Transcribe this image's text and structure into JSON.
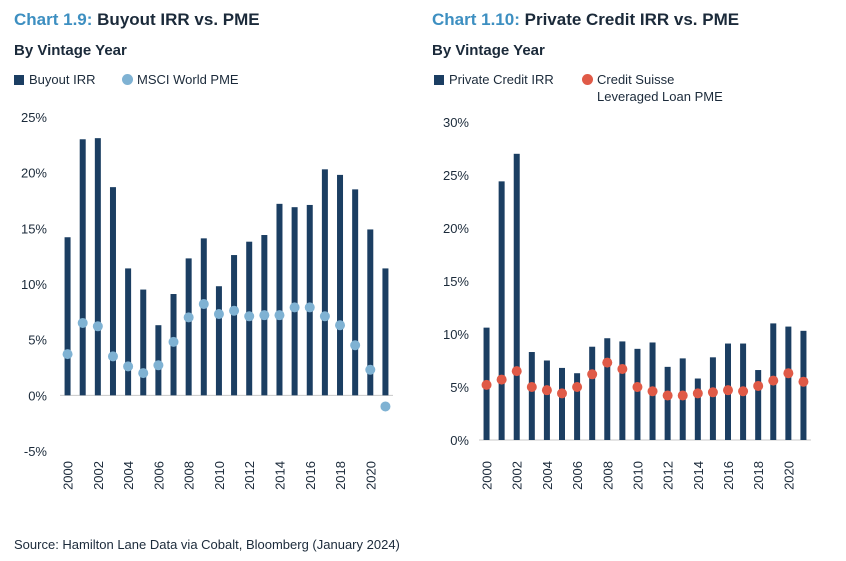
{
  "left": {
    "title_num": "Chart 1.9:",
    "title_text": "Buyout IRR vs. PME",
    "subtitle": "By Vintage Year",
    "legend_bar": "Buyout IRR",
    "legend_dot": "MSCI World PME"
  },
  "right": {
    "title_num": "Chart 1.10:",
    "title_text": "Private Credit IRR vs. PME",
    "subtitle": "By Vintage Year",
    "legend_bar": "Private Credit IRR",
    "legend_dot_line1": "Credit Suisse",
    "legend_dot_line2": "Leveraged Loan PME"
  },
  "source": "Source: Hamilton Lane Data via Cobalt, Bloomberg (January 2024)",
  "colors": {
    "bar": "#1b3e62",
    "pme_left": "#7fb2d3",
    "pme_right": "#e05a47",
    "title_accent": "#3d8fc1",
    "axis": "#c8c8c8"
  },
  "chart_data": [
    {
      "type": "bar",
      "title": "Buyout IRR vs. PME",
      "subtitle": "By Vintage Year",
      "x": [
        2000,
        2001,
        2002,
        2003,
        2004,
        2005,
        2006,
        2007,
        2008,
        2009,
        2010,
        2011,
        2012,
        2013,
        2014,
        2015,
        2016,
        2017,
        2018,
        2019,
        2020,
        2021
      ],
      "x_tick_labels": [
        "2000",
        "2002",
        "2004",
        "2006",
        "2008",
        "2010",
        "2012",
        "2014",
        "2016",
        "2018",
        "2020"
      ],
      "y_tick_labels": [
        "25%",
        "20%",
        "15%",
        "10%",
        "5%",
        "0%",
        "-5%"
      ],
      "y_ticks": [
        25,
        20,
        15,
        10,
        5,
        0,
        -5
      ],
      "ylim": [
        -5,
        25
      ],
      "series": [
        {
          "name": "Buyout IRR",
          "type": "bar",
          "values": [
            14.2,
            23.0,
            23.1,
            18.7,
            11.4,
            9.5,
            6.3,
            9.1,
            12.3,
            14.1,
            9.8,
            12.6,
            13.8,
            14.4,
            17.2,
            16.9,
            17.1,
            20.3,
            19.8,
            18.5,
            14.9,
            11.4
          ]
        },
        {
          "name": "MSCI World PME",
          "type": "scatter",
          "values": [
            3.7,
            6.5,
            6.2,
            3.5,
            2.6,
            2.0,
            2.7,
            4.8,
            7.0,
            8.2,
            7.3,
            7.6,
            7.1,
            7.2,
            7.2,
            7.9,
            7.9,
            7.1,
            6.3,
            4.5,
            2.3,
            -1.0
          ]
        }
      ],
      "legend": "top-left",
      "grid": false
    },
    {
      "type": "bar",
      "title": "Private Credit IRR vs. PME",
      "subtitle": "By Vintage Year",
      "x": [
        2000,
        2001,
        2002,
        2003,
        2004,
        2005,
        2006,
        2007,
        2008,
        2009,
        2010,
        2011,
        2012,
        2013,
        2014,
        2015,
        2016,
        2017,
        2018,
        2019,
        2020,
        2021
      ],
      "x_tick_labels": [
        "2000",
        "2002",
        "2004",
        "2006",
        "2008",
        "2010",
        "2012",
        "2014",
        "2016",
        "2018",
        "2020"
      ],
      "y_tick_labels": [
        "30%",
        "25%",
        "20%",
        "15%",
        "10%",
        "5%",
        "0%"
      ],
      "y_ticks": [
        30,
        25,
        20,
        15,
        10,
        5,
        0
      ],
      "ylim": [
        0,
        30
      ],
      "series": [
        {
          "name": "Private Credit IRR",
          "type": "bar",
          "values": [
            10.6,
            24.4,
            27.0,
            8.3,
            7.5,
            6.8,
            6.3,
            8.8,
            9.6,
            9.3,
            8.6,
            9.2,
            6.9,
            7.7,
            5.8,
            7.8,
            9.1,
            9.1,
            6.6,
            11.0,
            10.7,
            10.3
          ]
        },
        {
          "name": "Credit Suisse Leveraged Loan PME",
          "type": "scatter",
          "values": [
            5.2,
            5.7,
            6.5,
            5.0,
            4.7,
            4.4,
            5.0,
            6.2,
            7.3,
            6.7,
            5.0,
            4.6,
            4.2,
            4.2,
            4.4,
            4.5,
            4.7,
            4.6,
            5.1,
            5.6,
            6.3,
            5.5
          ]
        }
      ],
      "legend": "top-left",
      "grid": false
    }
  ]
}
